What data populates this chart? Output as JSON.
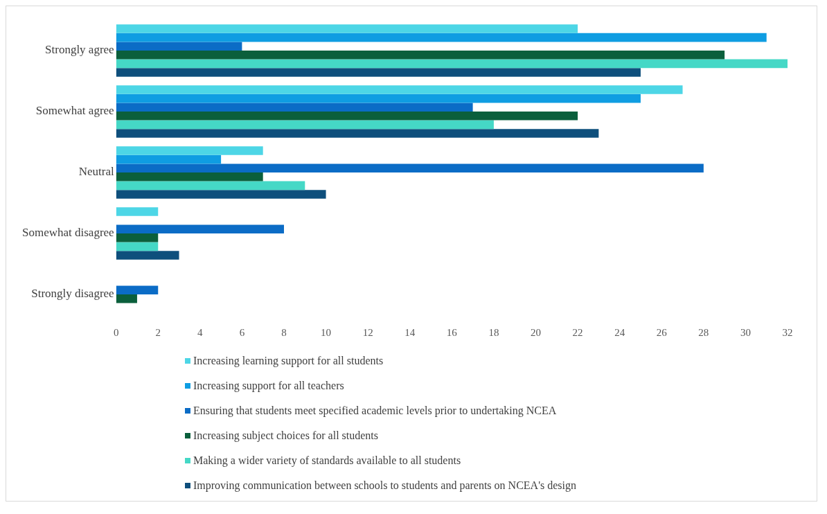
{
  "chart_data": {
    "type": "bar",
    "orientation": "horizontal",
    "categories": [
      "Strongly agree",
      "Somewhat agree",
      "Neutral",
      "Somewhat disagree",
      "Strongly disagree"
    ],
    "series": [
      {
        "name": "Increasing learning support for all students",
        "color": "#4dd6e6",
        "values": [
          22,
          27,
          7,
          2,
          0
        ]
      },
      {
        "name": "Increasing support for all teachers",
        "color": "#0f9de2",
        "values": [
          31,
          25,
          5,
          0,
          0
        ]
      },
      {
        "name": "Ensuring that students meet specified academic levels prior to undertaking NCEA",
        "color": "#0b6cc6",
        "values": [
          6,
          17,
          28,
          8,
          2
        ]
      },
      {
        "name": "Increasing subject choices for all students",
        "color": "#0b5f3c",
        "values": [
          29,
          22,
          7,
          2,
          1
        ]
      },
      {
        "name": "Making a wider variety of standards available to all students",
        "color": "#45d8c6",
        "values": [
          32,
          18,
          9,
          2,
          0
        ]
      },
      {
        "name": "Improving communication between schools to students and parents on NCEA's design",
        "color": "#0e4f7c",
        "values": [
          25,
          23,
          10,
          3,
          0
        ]
      }
    ],
    "xlim": [
      0,
      32
    ],
    "xticks": [
      0,
      2,
      4,
      6,
      8,
      10,
      12,
      14,
      16,
      18,
      20,
      22,
      24,
      26,
      28,
      30,
      32
    ],
    "grid": false,
    "legend": "bottom"
  }
}
